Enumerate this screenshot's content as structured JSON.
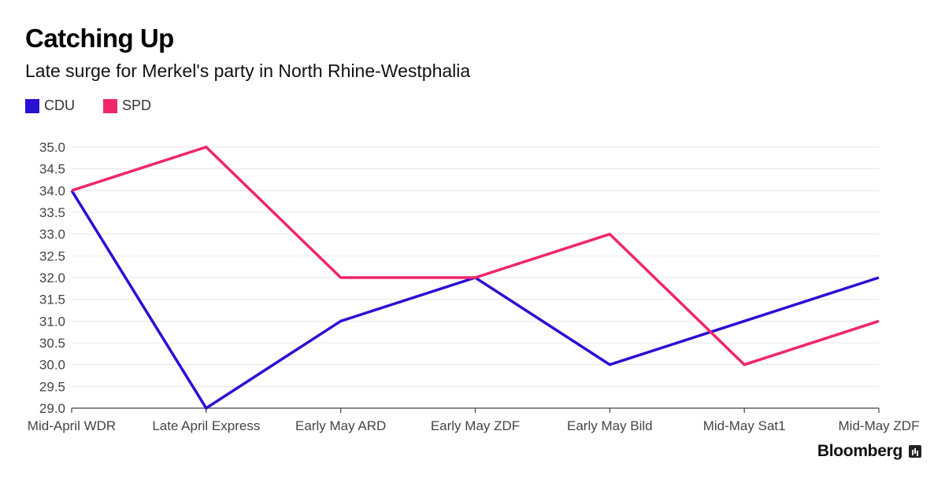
{
  "chart_data": {
    "type": "line",
    "title": "Catching Up",
    "subtitle": "Late surge for Merkel's party in North Rhine-Westphalia",
    "categories": [
      "Mid-April WDR",
      "Late April Express",
      "Early May ARD",
      "Early May ZDF",
      "Early May Bild",
      "Mid-May Sat1",
      "Mid-May ZDF"
    ],
    "series": [
      {
        "name": "CDU",
        "color": "#2a0fd4",
        "values": [
          34.0,
          29.0,
          31.0,
          32.0,
          30.0,
          31.0,
          32.0
        ]
      },
      {
        "name": "SPD",
        "color": "#f0266b",
        "values": [
          34.0,
          35.0,
          32.0,
          32.0,
          33.0,
          30.0,
          31.0
        ]
      }
    ],
    "ylim": [
      29.0,
      35.0
    ],
    "yticks": [
      "29.0",
      "29.5",
      "30.0",
      "30.5",
      "31.0",
      "31.5",
      "32.0",
      "32.5",
      "33.0",
      "33.5",
      "34.0",
      "34.5",
      "35.0"
    ],
    "xlabel": "",
    "ylabel": "",
    "grid": true,
    "legend_position": "top-left"
  },
  "brand": "Bloomberg"
}
